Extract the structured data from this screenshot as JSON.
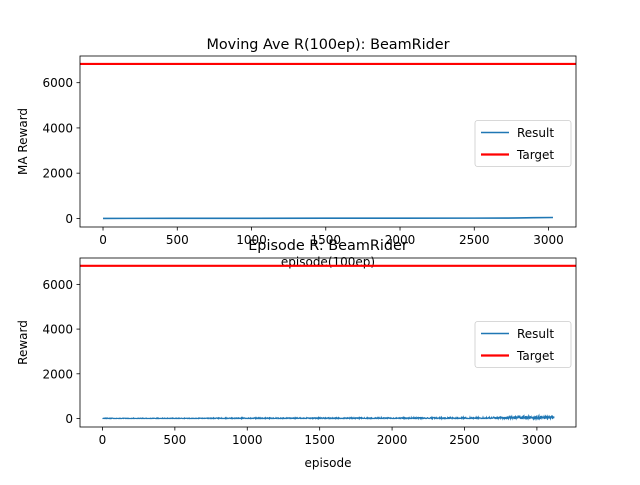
{
  "figure": {
    "background": "#ffffff"
  },
  "chart_data": [
    {
      "type": "line",
      "title": "Moving Ave R(100ep): BeamRider",
      "xlabel": "episode(100ep)",
      "ylabel": "MA Reward",
      "xlim": [
        -155,
        3185
      ],
      "ylim": [
        -380,
        7180
      ],
      "xticks": [
        "0",
        "500",
        "1000",
        "1500",
        "2000",
        "2500",
        "3000"
      ],
      "xtick_values": [
        0,
        500,
        1000,
        1500,
        2000,
        2500,
        3000
      ],
      "yticks": [
        "0",
        "2000",
        "4000",
        "6000"
      ],
      "ytick_values": [
        0,
        2000,
        4000,
        6000
      ],
      "grid": false,
      "legend_position": "right",
      "series": [
        {
          "name": "Result",
          "color": "#1f77b4",
          "style": "line",
          "x": [
            0,
            500,
            1000,
            1500,
            2000,
            2500,
            2700,
            2800,
            2900,
            3030
          ],
          "y": [
            0,
            3,
            5,
            8,
            10,
            12,
            15,
            20,
            30,
            40
          ]
        },
        {
          "name": "Target",
          "color": "#ff0000",
          "style": "hline",
          "y": 6830
        }
      ]
    },
    {
      "type": "line",
      "title": "Episode R: BeamRider",
      "xlabel": "episode",
      "ylabel": "Reward",
      "xlim": [
        -155,
        3270
      ],
      "ylim": [
        -380,
        7180
      ],
      "xticks": [
        "0",
        "500",
        "1000",
        "1500",
        "2000",
        "2500",
        "3000"
      ],
      "xtick_values": [
        0,
        500,
        1000,
        1500,
        2000,
        2500,
        3000
      ],
      "yticks": [
        "0",
        "2000",
        "4000",
        "6000"
      ],
      "ytick_values": [
        0,
        2000,
        4000,
        6000
      ],
      "grid": false,
      "legend_position": "right",
      "series": [
        {
          "name": "Result",
          "color": "#1f77b4",
          "style": "noisy",
          "x": [
            0,
            500,
            1000,
            1500,
            2000,
            2500,
            2800,
            2900,
            3000,
            3120
          ],
          "y": [
            0,
            0,
            5,
            10,
            10,
            15,
            30,
            40,
            50,
            30
          ],
          "noise_amplitude": [
            20,
            20,
            25,
            25,
            30,
            35,
            60,
            80,
            90,
            70
          ]
        },
        {
          "name": "Target",
          "color": "#ff0000",
          "style": "hline",
          "y": 6830
        }
      ]
    }
  ]
}
